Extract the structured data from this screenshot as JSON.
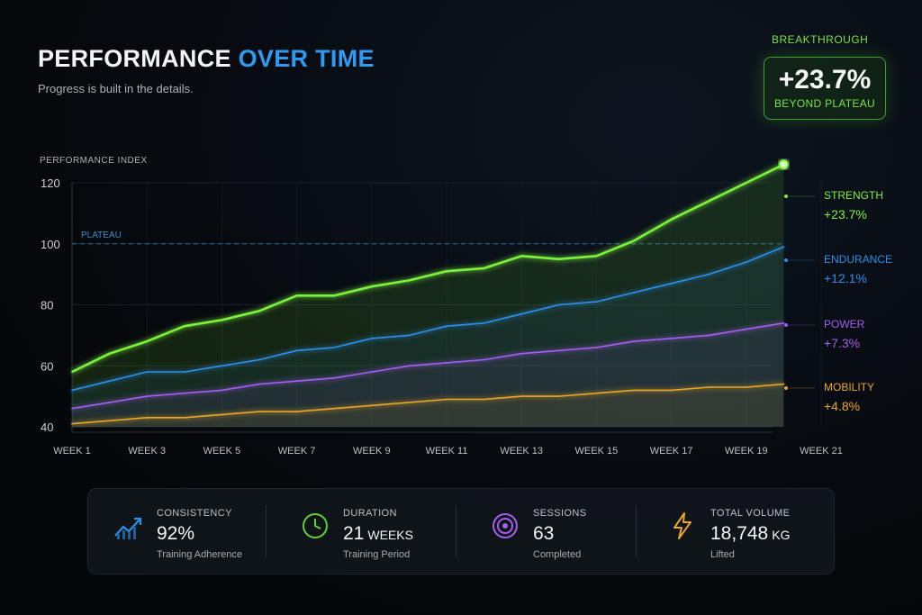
{
  "header": {
    "title_part1": "PERFORMANCE",
    "title_part2": "OVER TIME",
    "subtitle": "Progress is built in the details."
  },
  "breakthrough": {
    "label": "BREAKTHROUGH",
    "value": "+23.7%",
    "sublabel": "BEYOND PLATEAU"
  },
  "colors": {
    "strength": "#7cf23c",
    "endurance": "#2f8fe8",
    "power": "#a45ef0",
    "mobility": "#e8a62a",
    "plateau": "#3a8ec8"
  },
  "chart_data": {
    "type": "line",
    "ylabel": "PERFORMANCE INDEX",
    "ylim": [
      40,
      120
    ],
    "yticks": [
      40,
      60,
      80,
      100,
      120
    ],
    "xlim": [
      1,
      21
    ],
    "xticks": [
      "WEEK 1",
      "WEEK 3",
      "WEEK 5",
      "WEEK 7",
      "WEEK 9",
      "WEEK 11",
      "WEEK 13",
      "WEEK 15",
      "WEEK 17",
      "WEEK 19",
      "WEEK 21"
    ],
    "plateau": {
      "label": "PLATEAU",
      "value": 100
    },
    "x": [
      1,
      2,
      3,
      4,
      5,
      6,
      7,
      8,
      9,
      10,
      11,
      12,
      13,
      14,
      15,
      16,
      17,
      18,
      19,
      20
    ],
    "series": [
      {
        "name": "STRENGTH",
        "change": "+23.7%",
        "values": [
          58,
          64,
          68,
          73,
          75,
          78,
          83,
          83,
          86,
          88,
          91,
          92,
          96,
          95,
          96,
          101,
          108,
          114,
          120,
          126
        ]
      },
      {
        "name": "ENDURANCE",
        "change": "+12.1%",
        "values": [
          52,
          55,
          58,
          58,
          60,
          62,
          65,
          66,
          69,
          70,
          73,
          74,
          77,
          80,
          81,
          84,
          87,
          90,
          94,
          99
        ]
      },
      {
        "name": "POWER",
        "change": "+7.3%",
        "values": [
          46,
          48,
          50,
          51,
          52,
          54,
          55,
          56,
          58,
          60,
          61,
          62,
          64,
          65,
          66,
          68,
          69,
          70,
          72,
          74
        ]
      },
      {
        "name": "MOBILITY",
        "change": "+4.8%",
        "values": [
          41,
          42,
          43,
          43,
          44,
          45,
          45,
          46,
          47,
          48,
          49,
          49,
          50,
          50,
          51,
          52,
          52,
          53,
          53,
          54
        ]
      }
    ]
  },
  "stats": [
    {
      "label": "CONSISTENCY",
      "value": "92%",
      "unit": "",
      "caption": "Training Adherence",
      "icon": "trend-up-icon"
    },
    {
      "label": "DURATION",
      "value": "21",
      "unit": "WEEKS",
      "caption": "Training Period",
      "icon": "clock-icon"
    },
    {
      "label": "SESSIONS",
      "value": "63",
      "unit": "",
      "caption": "Completed",
      "icon": "target-icon"
    },
    {
      "label": "TOTAL VOLUME",
      "value": "18,748",
      "unit": "KG",
      "caption": "Lifted",
      "icon": "lightning-icon"
    }
  ]
}
